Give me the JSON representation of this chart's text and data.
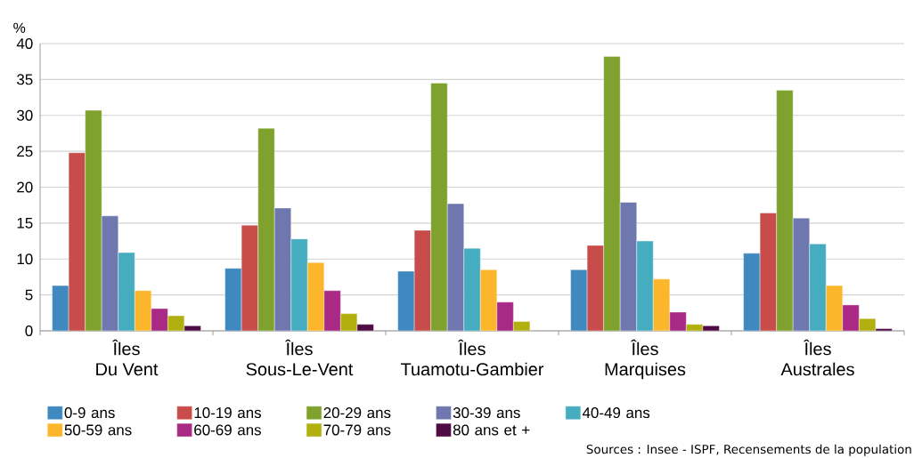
{
  "chart_data": {
    "type": "bar",
    "ylabel": "%",
    "categories": [
      "Îles\nDu Vent",
      "Îles\nSous-Le-Vent",
      "Îles\nTuamotu-Gambier",
      "Îles\nMarquises",
      "Îles\nAustrales"
    ],
    "series": [
      {
        "name": "0-9 ans",
        "color": "#3f88c0",
        "values": [
          6.3,
          8.7,
          8.3,
          8.5,
          10.8
        ]
      },
      {
        "name": "10-19 ans",
        "color": "#c84d4a",
        "values": [
          24.8,
          14.7,
          14.0,
          11.9,
          16.4
        ]
      },
      {
        "name": "20-29 ans",
        "color": "#7fa22f",
        "values": [
          30.7,
          28.2,
          34.5,
          38.2,
          33.5
        ]
      },
      {
        "name": "30-39 ans",
        "color": "#6f78ae",
        "values": [
          16.0,
          17.1,
          17.7,
          17.9,
          15.7
        ]
      },
      {
        "name": "40-49 ans",
        "color": "#46adc0",
        "values": [
          10.9,
          12.8,
          11.5,
          12.5,
          12.1
        ]
      },
      {
        "name": "50-59 ans",
        "color": "#fbb62b",
        "values": [
          5.6,
          9.5,
          8.5,
          7.2,
          6.3
        ]
      },
      {
        "name": "60-69 ans",
        "color": "#a92a85",
        "values": [
          3.1,
          5.6,
          4.0,
          2.6,
          3.6
        ]
      },
      {
        "name": "70-79 ans",
        "color": "#b2b00f",
        "values": [
          2.1,
          2.4,
          1.3,
          0.9,
          1.7
        ]
      },
      {
        "name": "80 ans et +",
        "color": "#4f0b44",
        "values": [
          0.7,
          0.9,
          null,
          0.7,
          0.3
        ]
      }
    ],
    "ylim": [
      0,
      40
    ],
    "yticks": [
      0,
      5,
      10,
      15,
      20,
      25,
      30,
      35,
      40
    ],
    "grid": "y",
    "legend": "bottom",
    "annotations": [
      "Sources : Insee - ISPF, Recensements de la population"
    ]
  }
}
